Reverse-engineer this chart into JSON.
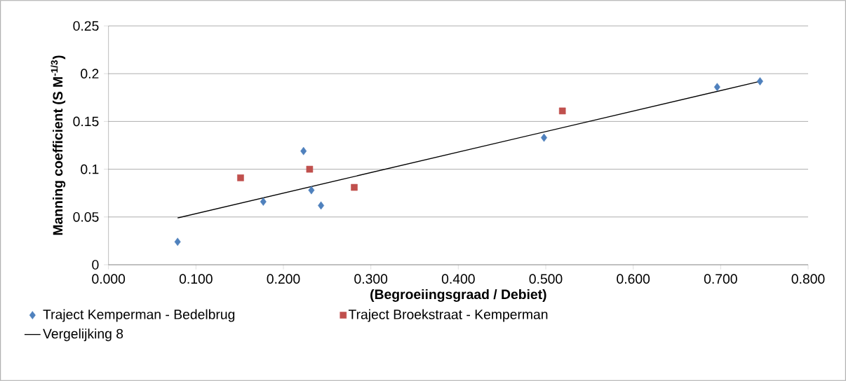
{
  "chart_data": {
    "type": "scatter",
    "xlabel": "(Begroeiingsgraad / Debiet)",
    "ylabel": "Manning coefficient (S M$^{-1/3}$)",
    "xlim": [
      0,
      0.8
    ],
    "ylim": [
      0,
      0.25
    ],
    "xticks": [
      {
        "value": 0,
        "label": "0.000"
      },
      {
        "value": 0.1,
        "label": "0.100"
      },
      {
        "value": 0.2,
        "label": "0.200"
      },
      {
        "value": 0.3,
        "label": "0.300"
      },
      {
        "value": 0.4,
        "label": "0.400"
      },
      {
        "value": 0.5,
        "label": "0.500"
      },
      {
        "value": 0.6,
        "label": "0.600"
      },
      {
        "value": 0.7,
        "label": "0.700"
      },
      {
        "value": 0.8,
        "label": "0.800"
      }
    ],
    "yticks": [
      0,
      0.05,
      0.1,
      0.15,
      0.2,
      0.25
    ],
    "grid": "y",
    "legend": "bottom",
    "series": [
      {
        "name": "Traject Kemperman - Bedelbrug",
        "marker": "diamond",
        "color": "#4f81bd",
        "x": [
          0.079,
          0.177,
          0.223,
          0.232,
          0.243,
          0.498,
          0.696,
          0.745
        ],
        "values": [
          0.024,
          0.066,
          0.119,
          0.078,
          0.062,
          0.133,
          0.186,
          0.192
        ]
      },
      {
        "name": "Traject Broekstraat - Kemperman",
        "marker": "square",
        "color": "#c0504d",
        "x": [
          0.151,
          0.23,
          0.281,
          0.519
        ],
        "values": [
          0.091,
          0.1,
          0.081,
          0.161
        ]
      },
      {
        "name": "Vergelijking 8",
        "type": "line",
        "marker": "none",
        "line_style": "solid",
        "color": "#000000",
        "x": [
          0.079,
          0.745
        ],
        "values": [
          0.049,
          0.192
        ]
      }
    ]
  }
}
